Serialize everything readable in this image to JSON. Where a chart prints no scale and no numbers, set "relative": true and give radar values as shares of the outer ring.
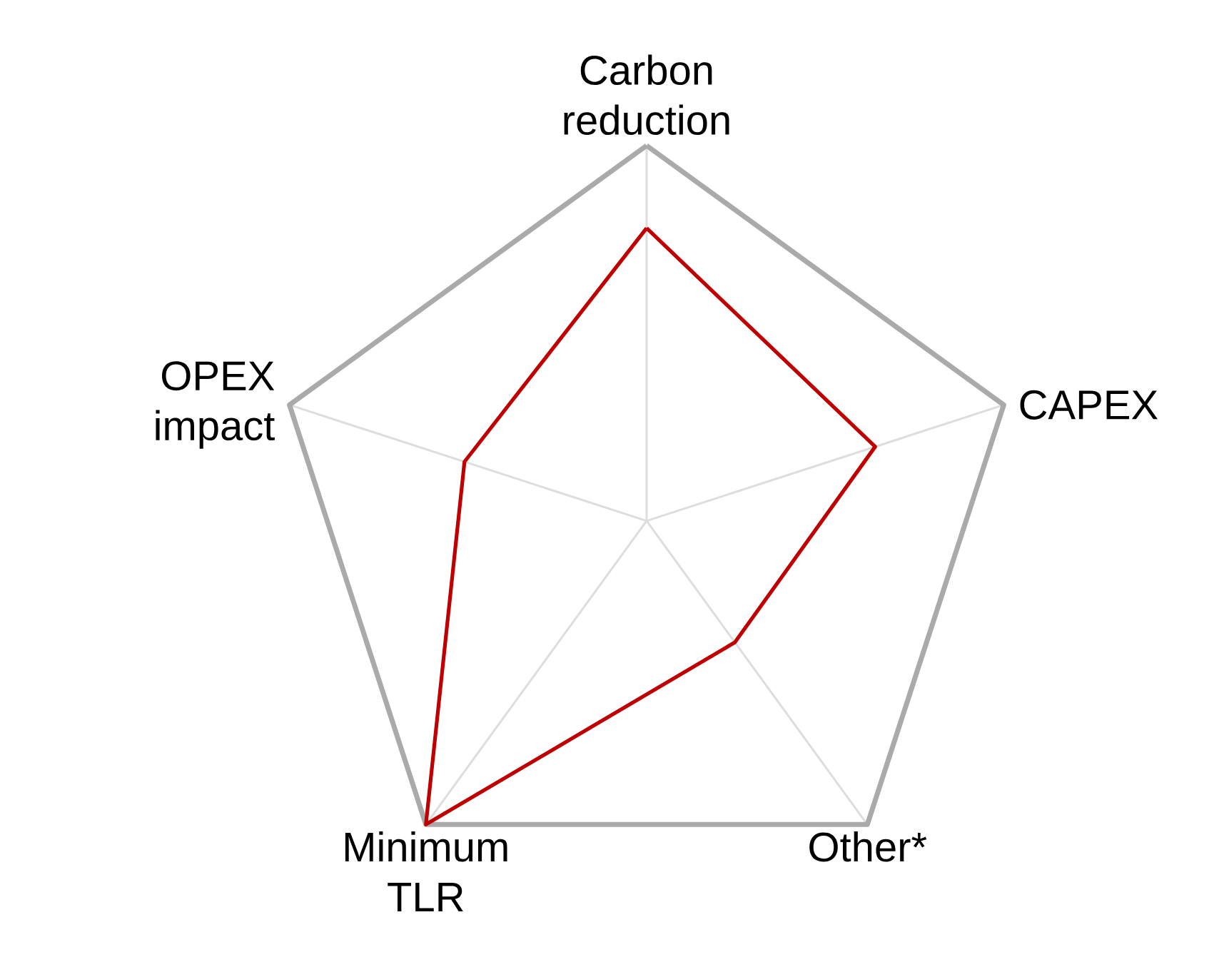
{
  "chart_data": {
    "type": "radar",
    "relative": true,
    "categories": [
      "Carbon reduction",
      "CAPEX",
      "Other*",
      "Minimum TLR",
      "OPEX impact"
    ],
    "series": [
      {
        "color": "#c00000",
        "values": [
          0.78,
          0.64,
          0.4,
          1.0,
          0.51
        ]
      }
    ],
    "grid": true
  }
}
